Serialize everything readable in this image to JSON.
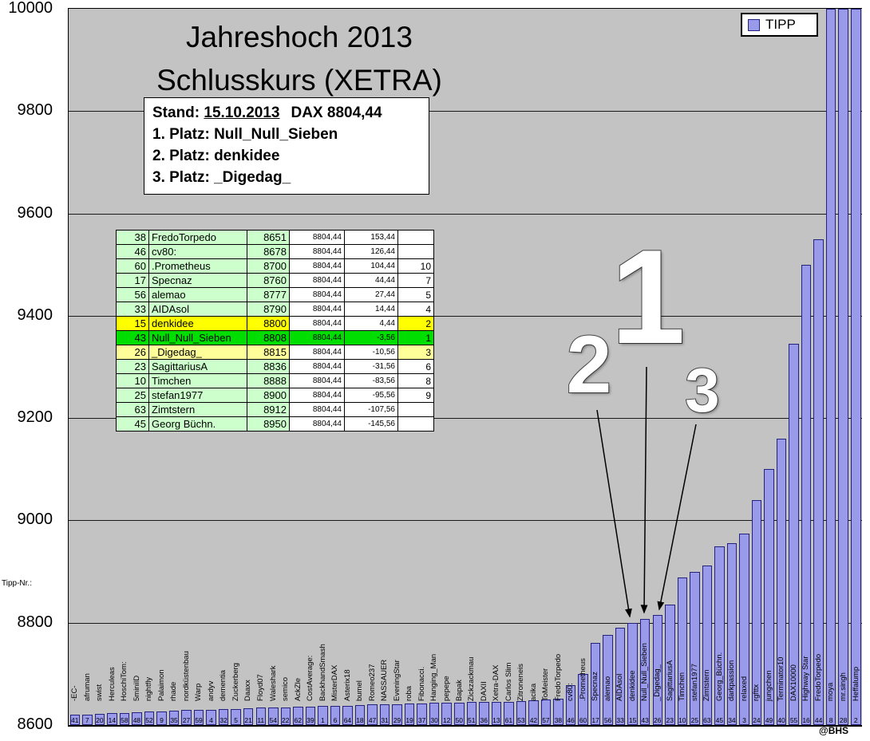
{
  "title": {
    "line1": "Jahreshoch 2013",
    "line2": "Schlusskurs (XETRA)"
  },
  "legend": {
    "label": "TIPP"
  },
  "info_box": {
    "stand_label": "Stand:",
    "date": "15.10.2013",
    "dax": "DAX 8804,44",
    "platz1": "1. Platz: Null_Null_Sieben",
    "platz2": "2. Platz: denkidee",
    "platz3": "3. Platz: _Digedag_"
  },
  "axis": {
    "x_axis_label": "Tipp-Nr.:"
  },
  "annotations": {
    "first": "1",
    "second": "2",
    "third": "3"
  },
  "watermark": "@BHS",
  "ranking_table": {
    "rows": [
      {
        "nr": "38",
        "name": "FredoTorpedo",
        "tipp": "8651",
        "dax": "8804,44",
        "diff": "153,44",
        "rank": "",
        "hl": "none"
      },
      {
        "nr": "46",
        "name": "cv80:",
        "tipp": "8678",
        "dax": "8804,44",
        "diff": "126,44",
        "rank": "",
        "hl": "none"
      },
      {
        "nr": "60",
        "name": ".Prometheus",
        "tipp": "8700",
        "dax": "8804,44",
        "diff": "104,44",
        "rank": "10",
        "hl": "none"
      },
      {
        "nr": "17",
        "name": "Specnaz",
        "tipp": "8760",
        "dax": "8804,44",
        "diff": "44,44",
        "rank": "7",
        "hl": "none"
      },
      {
        "nr": "56",
        "name": "alemao",
        "tipp": "8777",
        "dax": "8804,44",
        "diff": "27,44",
        "rank": "5",
        "hl": "none"
      },
      {
        "nr": "33",
        "name": "AIDAsol",
        "tipp": "8790",
        "dax": "8804,44",
        "diff": "14,44",
        "rank": "4",
        "hl": "none"
      },
      {
        "nr": "15",
        "name": "denkidee",
        "tipp": "8800",
        "dax": "8804,44",
        "diff": "4,44",
        "rank": "2",
        "hl": "yellow"
      },
      {
        "nr": "43",
        "name": "Null_Null_Sieben",
        "tipp": "8808",
        "dax": "8804,44",
        "diff": "-3,56",
        "rank": "1",
        "hl": "green"
      },
      {
        "nr": "26",
        "name": "_Digedag_",
        "tipp": "8815",
        "dax": "8804,44",
        "diff": "-10,56",
        "rank": "3",
        "hl": "pale"
      },
      {
        "nr": "23",
        "name": "SagittariusA",
        "tipp": "8836",
        "dax": "8804,44",
        "diff": "-31,56",
        "rank": "6",
        "hl": "none"
      },
      {
        "nr": "10",
        "name": "Timchen",
        "tipp": "8888",
        "dax": "8804,44",
        "diff": "-83,56",
        "rank": "8",
        "hl": "none"
      },
      {
        "nr": "25",
        "name": "stefan1977",
        "tipp": "8900",
        "dax": "8804,44",
        "diff": "-95,56",
        "rank": "9",
        "hl": "none"
      },
      {
        "nr": "63",
        "name": "Zimtstern",
        "tipp": "8912",
        "dax": "8804,44",
        "diff": "-107,56",
        "rank": "",
        "hl": "none"
      },
      {
        "nr": "45",
        "name": "Georg Büchn.",
        "tipp": "8950",
        "dax": "8804,44",
        "diff": "-145,56",
        "rank": "",
        "hl": "none"
      }
    ]
  },
  "chart_data": {
    "type": "bar",
    "title": "Jahreshoch 2013 Schlusskurs (XETRA)",
    "legend_entries": [
      "TIPP"
    ],
    "ylim": [
      8600,
      10000
    ],
    "y_ticks": [
      8600,
      8800,
      9000,
      9200,
      9400,
      9600,
      9800,
      10000
    ],
    "grid": true,
    "plot_background": "#c3c3c3",
    "bar_fill": "#9a9aea",
    "bar_border": "#23237f",
    "bars": [
      {
        "name": "-EC-",
        "tipp_nr": "41",
        "value": 8620
      },
      {
        "name": "afruman",
        "tipp_nr": "7",
        "value": 8621
      },
      {
        "name": "swist",
        "tipp_nr": "20",
        "value": 8622
      },
      {
        "name": "Herculeas",
        "tipp_nr": "14",
        "value": 8623
      },
      {
        "name": "HoschiTom:",
        "tipp_nr": "58",
        "value": 8624
      },
      {
        "name": "5miniID",
        "tipp_nr": "48",
        "value": 8625
      },
      {
        "name": "nightfly",
        "tipp_nr": "52",
        "value": 8626
      },
      {
        "name": "Palaimon",
        "tipp_nr": "9",
        "value": 8627
      },
      {
        "name": "rhade",
        "tipp_nr": "35",
        "value": 8628
      },
      {
        "name": "nordküstenbau",
        "tipp_nr": "27",
        "value": 8629
      },
      {
        "name": "Warp",
        "tipp_nr": "59",
        "value": 8630
      },
      {
        "name": "andyv",
        "tipp_nr": "4",
        "value": 8630
      },
      {
        "name": "dementia",
        "tipp_nr": "32",
        "value": 8631
      },
      {
        "name": "Zuckerberg",
        "tipp_nr": "5",
        "value": 8632
      },
      {
        "name": "Daaxx",
        "tipp_nr": "21",
        "value": 8633
      },
      {
        "name": "Floyd07",
        "tipp_nr": "11",
        "value": 8634
      },
      {
        "name": "Waleshark",
        "tipp_nr": "54",
        "value": 8634
      },
      {
        "name": "semico",
        "tipp_nr": "22",
        "value": 8635
      },
      {
        "name": "AckZle",
        "tipp_nr": "62",
        "value": 8636
      },
      {
        "name": "CostAverage:",
        "tipp_nr": "39",
        "value": 8636
      },
      {
        "name": "BackhandSmash",
        "tipp_nr": "1",
        "value": 8637
      },
      {
        "name": "MisterDAX",
        "tipp_nr": "6",
        "value": 8638
      },
      {
        "name": "Asterix18",
        "tipp_nr": "64",
        "value": 8638
      },
      {
        "name": "bumel",
        "tipp_nr": "18",
        "value": 8639
      },
      {
        "name": "Romeo237",
        "tipp_nr": "47",
        "value": 8640
      },
      {
        "name": "NASSAUER",
        "tipp_nr": "31",
        "value": 8640
      },
      {
        "name": "EveningStar",
        "tipp_nr": "29",
        "value": 8641
      },
      {
        "name": "roba",
        "tipp_nr": "19",
        "value": 8642
      },
      {
        "name": "Fibonacci.",
        "tipp_nr": "37",
        "value": 8642
      },
      {
        "name": "Hanging_Man",
        "tipp_nr": "30",
        "value": 8643
      },
      {
        "name": "pepepe",
        "tipp_nr": "12",
        "value": 8644
      },
      {
        "name": "Bapak",
        "tipp_nr": "50",
        "value": 8644
      },
      {
        "name": "Zickzackmau",
        "tipp_nr": "51",
        "value": 8645
      },
      {
        "name": "DAXII",
        "tipp_nr": "36",
        "value": 8645
      },
      {
        "name": "Xetra-DAX",
        "tipp_nr": "13",
        "value": 8646
      },
      {
        "name": "Carlos Slim",
        "tipp_nr": "61",
        "value": 8646
      },
      {
        "name": "Zitroneneis",
        "tipp_nr": "53",
        "value": 8647
      },
      {
        "name": "acika",
        "tipp_nr": "42",
        "value": 8648
      },
      {
        "name": "ToMeister",
        "tipp_nr": "57",
        "value": 8650
      },
      {
        "name": "FredoTorpedo",
        "tipp_nr": "38",
        "value": 8651
      },
      {
        "name": "cv80:",
        "tipp_nr": "46",
        "value": 8678
      },
      {
        "name": ".Prometheus",
        "tipp_nr": "60",
        "value": 8700
      },
      {
        "name": "Specnaz",
        "tipp_nr": "17",
        "value": 8760
      },
      {
        "name": "alemao",
        "tipp_nr": "56",
        "value": 8777
      },
      {
        "name": "AIDAsol",
        "tipp_nr": "33",
        "value": 8790
      },
      {
        "name": "denkidee",
        "tipp_nr": "15",
        "value": 8800
      },
      {
        "name": "Null_Null_Sieben",
        "tipp_nr": "43",
        "value": 8808
      },
      {
        "name": "_Digedag_",
        "tipp_nr": "26",
        "value": 8815
      },
      {
        "name": "SagittariusA",
        "tipp_nr": "23",
        "value": 8836
      },
      {
        "name": "Timchen",
        "tipp_nr": "10",
        "value": 8888
      },
      {
        "name": "stefan1977",
        "tipp_nr": "25",
        "value": 8900
      },
      {
        "name": "Zimtstern",
        "tipp_nr": "63",
        "value": 8912
      },
      {
        "name": "Georg_Büchn.",
        "tipp_nr": "45",
        "value": 8950
      },
      {
        "name": "darkpassion",
        "tipp_nr": "34",
        "value": 8955
      },
      {
        "name": "relaxed",
        "tipp_nr": "3",
        "value": 8975
      },
      {
        "name": "rgfttx",
        "tipp_nr": "24",
        "value": 9040
      },
      {
        "name": "jungchen",
        "tipp_nr": "49",
        "value": 9100
      },
      {
        "name": "Terminator10",
        "tipp_nr": "40",
        "value": 9160
      },
      {
        "name": "DAX10000",
        "tipp_nr": "55",
        "value": 9345
      },
      {
        "name": "Highway Star",
        "tipp_nr": "16",
        "value": 9500
      },
      {
        "name": "FredoTorpedo",
        "tipp_nr": "44",
        "value": 9550
      },
      {
        "name": "moya",
        "tipp_nr": "8",
        "value": 10000
      },
      {
        "name": "mr.singh",
        "tipp_nr": "28",
        "value": 10000
      },
      {
        "name": "Heffalump",
        "tipp_nr": "2",
        "value": 10000
      }
    ]
  }
}
